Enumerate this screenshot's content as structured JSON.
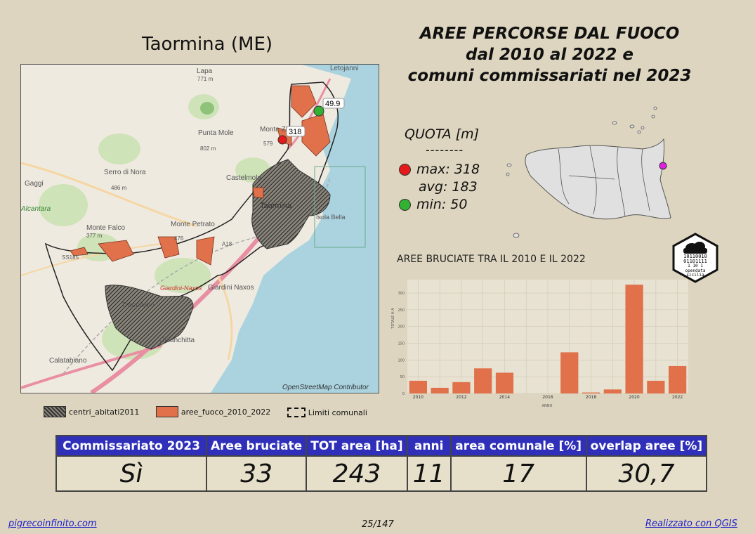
{
  "map_title": "Taormina (ME)",
  "main_title": {
    "line1": "AREE PERCORSE DAL FUOCO",
    "line2": "dal 2010 al 2022 e",
    "line3": "comuni commissariati nel 2023"
  },
  "map": {
    "attribution": "OpenStreetMap Contributor",
    "places": [
      "Letojanni",
      "Lapa",
      "Monte Ziretto",
      "Punta Mole",
      "Serro di Nora",
      "Gaggi",
      "Alcantara",
      "Monte Falco",
      "Monte Petrato",
      "Castelmola",
      "Taormina",
      "Isola Bella",
      "Giardini-Naxos",
      "Giardini Naxos",
      "Calatabiano",
      "Trappitello",
      "Chianchitta",
      "SS185",
      "A18"
    ],
    "place_extras": [
      "771 m",
      "579",
      "802 m",
      "486 m",
      "377 m",
      "476"
    ],
    "max_marker_label": "318",
    "min_marker_label": "49.9"
  },
  "quota": {
    "title": "QUOTA [m]",
    "separator": "--------",
    "max_label": "max: 318",
    "avg_label": "avg: 183",
    "min_label": "min: 50",
    "max_color": "#e41a1c",
    "min_color": "#33b133"
  },
  "logo": {
    "text1": "10110010",
    "text2": "01101111",
    "text3": "1 10 1",
    "caption1": "opendata",
    "caption2": "sicilia"
  },
  "chart_title": "AREE BRUCIATE TRA IL 2010 E IL 2022",
  "chart_data": {
    "type": "bar",
    "x": [
      2010,
      2011,
      2012,
      2013,
      2014,
      2015,
      2016,
      2017,
      2018,
      2019,
      2020,
      2021,
      2022
    ],
    "values": [
      38,
      17,
      34,
      75,
      62,
      0,
      0,
      123,
      3,
      12,
      325,
      38,
      82
    ],
    "color": "#e0714a",
    "xlabel": "ANNO",
    "ylabel": "TOTALE H A",
    "ylim": [
      0,
      340
    ],
    "yticks": [
      0,
      50,
      100,
      150,
      200,
      250,
      300
    ],
    "xticks": [
      2010,
      2012,
      2014,
      2016,
      2018,
      2020,
      2022
    ],
    "grid": true
  },
  "legend": {
    "item1": "centri_abitati2011",
    "item2": "aree_fuoco_2010_2022",
    "item3": "Limiti comunali",
    "fire_color": "#e0714a"
  },
  "stats": {
    "headers": [
      "Commissariato 2023",
      "Aree bruciate",
      "TOT area [ha]",
      "anni",
      "area comunale [%]",
      "overlap aree [%]"
    ],
    "values": [
      "Sì",
      "33",
      "243",
      "11",
      "17",
      "30,7"
    ]
  },
  "footer": {
    "left": "pigrecoinfinito.com",
    "middle": "25/147",
    "right": "Realizzato con QGIS"
  }
}
